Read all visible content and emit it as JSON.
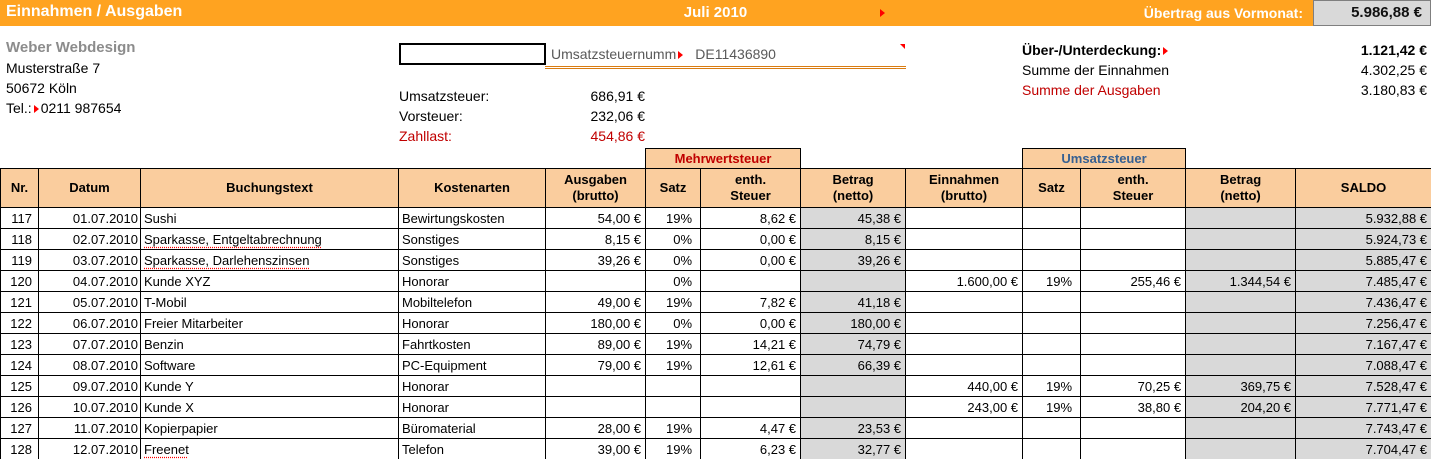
{
  "topbar": {
    "title": "Einnahmen / Ausgaben",
    "month": "Juli 2010",
    "carryover_label": "Übertrag aus Vormonat:",
    "carryover_value": "5.986,88 €"
  },
  "company": {
    "name": "Weber Webdesign",
    "street": "Musterstraße 7",
    "city": "50672 Köln",
    "phone_label": "Tel.:",
    "phone": "0211 987654"
  },
  "vat_id": {
    "label": "Umsatzsteuernumm",
    "value": "DE11436890"
  },
  "tax": {
    "umsatzsteuer_label": "Umsatzsteuer:",
    "umsatzsteuer_value": "686,91 €",
    "vorsteuer_label": "Vorsteuer:",
    "vorsteuer_value": "232,06 €",
    "zahllast_label": "Zahllast:",
    "zahllast_value": "454,86 €"
  },
  "summary": {
    "coverage_label": "Über-/Unterdeckung:",
    "coverage_value": "1.121,42 €",
    "income_label": "Summe der Einnahmen",
    "income_value": "4.302,25 €",
    "expense_label": "Summe der Ausgaben",
    "expense_value": "3.180,83 €"
  },
  "table": {
    "group_headers": {
      "mwst": "Mehrwertsteuer",
      "ust": "Umsatzsteuer"
    },
    "columns": [
      "Nr.",
      "Datum",
      "Buchungstext",
      "Kostenarten",
      "Ausgaben\n(brutto)",
      "Satz",
      "enth.\nSteuer",
      "Betrag\n(netto)",
      "Einnahmen\n(brutto)",
      "Satz",
      "enth.\nSteuer",
      "Betrag\n(netto)",
      "SALDO"
    ],
    "rows": [
      {
        "nr": "117",
        "datum": "01.07.2010",
        "text": "Sushi",
        "kostenart": "Bewirtungskosten",
        "ausgaben": "54,00 €",
        "a_satz": "19%",
        "a_steuer": "8,62 €",
        "a_netto": "45,38 €",
        "einnahmen": "",
        "e_satz": "",
        "e_steuer": "",
        "e_netto": "",
        "saldo": "5.932,88 €",
        "misspell": false
      },
      {
        "nr": "118",
        "datum": "02.07.2010",
        "text": "Sparkasse, Entgeltabrechnung",
        "kostenart": "Sonstiges",
        "ausgaben": "8,15 €",
        "a_satz": "0%",
        "a_steuer": "0,00 €",
        "a_netto": "8,15 €",
        "einnahmen": "",
        "e_satz": "",
        "e_steuer": "",
        "e_netto": "",
        "saldo": "5.924,73 €",
        "misspell": true
      },
      {
        "nr": "119",
        "datum": "03.07.2010",
        "text": "Sparkasse, Darlehenszinsen",
        "kostenart": "Sonstiges",
        "ausgaben": "39,26 €",
        "a_satz": "0%",
        "a_steuer": "0,00 €",
        "a_netto": "39,26 €",
        "einnahmen": "",
        "e_satz": "",
        "e_steuer": "",
        "e_netto": "",
        "saldo": "5.885,47 €",
        "misspell": true
      },
      {
        "nr": "120",
        "datum": "04.07.2010",
        "text": "Kunde XYZ",
        "kostenart": "Honorar",
        "ausgaben": "",
        "a_satz": "0%",
        "a_steuer": "",
        "a_netto": "",
        "einnahmen": "1.600,00 €",
        "e_satz": "19%",
        "e_steuer": "255,46 €",
        "e_netto": "1.344,54 €",
        "saldo": "7.485,47 €",
        "misspell": false
      },
      {
        "nr": "121",
        "datum": "05.07.2010",
        "text": "T-Mobil",
        "kostenart": "Mobiltelefon",
        "ausgaben": "49,00 €",
        "a_satz": "19%",
        "a_steuer": "7,82 €",
        "a_netto": "41,18 €",
        "einnahmen": "",
        "e_satz": "",
        "e_steuer": "",
        "e_netto": "",
        "saldo": "7.436,47 €",
        "misspell": false
      },
      {
        "nr": "122",
        "datum": "06.07.2010",
        "text": "Freier Mitarbeiter",
        "kostenart": "Honorar",
        "ausgaben": "180,00 €",
        "a_satz": "0%",
        "a_steuer": "0,00 €",
        "a_netto": "180,00 €",
        "einnahmen": "",
        "e_satz": "",
        "e_steuer": "",
        "e_netto": "",
        "saldo": "7.256,47 €",
        "misspell": false
      },
      {
        "nr": "123",
        "datum": "07.07.2010",
        "text": "Benzin",
        "kostenart": "Fahrtkosten",
        "ausgaben": "89,00 €",
        "a_satz": "19%",
        "a_steuer": "14,21 €",
        "a_netto": "74,79 €",
        "einnahmen": "",
        "e_satz": "",
        "e_steuer": "",
        "e_netto": "",
        "saldo": "7.167,47 €",
        "misspell": false
      },
      {
        "nr": "124",
        "datum": "08.07.2010",
        "text": "Software",
        "kostenart": "PC-Equipment",
        "ausgaben": "79,00 €",
        "a_satz": "19%",
        "a_steuer": "12,61 €",
        "a_netto": "66,39 €",
        "einnahmen": "",
        "e_satz": "",
        "e_steuer": "",
        "e_netto": "",
        "saldo": "7.088,47 €",
        "misspell": false
      },
      {
        "nr": "125",
        "datum": "09.07.2010",
        "text": "Kunde Y",
        "kostenart": "Honorar",
        "ausgaben": "",
        "a_satz": "",
        "a_steuer": "",
        "a_netto": "",
        "einnahmen": "440,00 €",
        "e_satz": "19%",
        "e_steuer": "70,25 €",
        "e_netto": "369,75 €",
        "saldo": "7.528,47 €",
        "misspell": false
      },
      {
        "nr": "126",
        "datum": "10.07.2010",
        "text": "Kunde X",
        "kostenart": "Honorar",
        "ausgaben": "",
        "a_satz": "",
        "a_steuer": "",
        "a_netto": "",
        "einnahmen": "243,00 €",
        "e_satz": "19%",
        "e_steuer": "38,80 €",
        "e_netto": "204,20 €",
        "saldo": "7.771,47 €",
        "misspell": false
      },
      {
        "nr": "127",
        "datum": "11.07.2010",
        "text": "Kopierpapier",
        "kostenart": "Büromaterial",
        "ausgaben": "28,00 €",
        "a_satz": "19%",
        "a_steuer": "4,47 €",
        "a_netto": "23,53 €",
        "einnahmen": "",
        "e_satz": "",
        "e_steuer": "",
        "e_netto": "",
        "saldo": "7.743,47 €",
        "misspell": false
      },
      {
        "nr": "128",
        "datum": "12.07.2010",
        "text": "Freenet",
        "kostenart": "Telefon",
        "ausgaben": "39,00 €",
        "a_satz": "19%",
        "a_steuer": "6,23 €",
        "a_netto": "32,77 €",
        "einnahmen": "",
        "e_satz": "",
        "e_steuer": "",
        "e_netto": "",
        "saldo": "7.704,47 €",
        "misspell": true
      }
    ]
  },
  "colors": {
    "orange_bar": "#FFA320",
    "header_peach": "#FACD9E",
    "grey_cell": "#D9D9D9",
    "expense_red": "#C00000",
    "income_blue": "#366092",
    "flag_red": "#FF0000"
  }
}
